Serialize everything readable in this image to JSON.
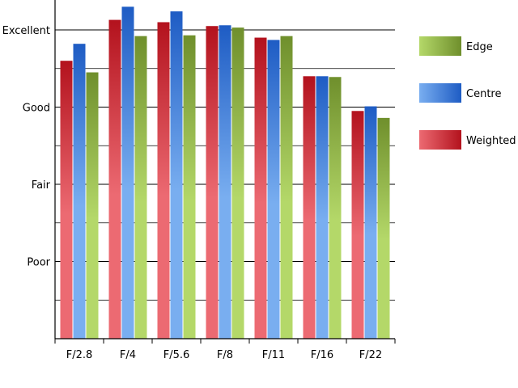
{
  "chart_data": {
    "type": "bar",
    "categories": [
      "F/2.8",
      "F/4",
      "F/5.6",
      "F/8",
      "F/11",
      "F/16",
      "F/22"
    ],
    "series": [
      {
        "name": "Weighted",
        "values": [
          3.6,
          4.13,
          4.1,
          4.05,
          3.9,
          3.4,
          2.95
        ],
        "color_light": "#ec6a72",
        "color_dark": "#b3121d"
      },
      {
        "name": "Centre",
        "values": [
          3.82,
          4.3,
          4.24,
          4.06,
          3.87,
          3.4,
          3.01
        ],
        "color_light": "#79aef0",
        "color_dark": "#1e5cc4"
      },
      {
        "name": "Edge",
        "values": [
          3.45,
          3.92,
          3.93,
          4.03,
          3.92,
          3.39,
          2.86
        ],
        "color_light": "#b4d869",
        "color_dark": "#6f8f2c"
      }
    ],
    "yticks": [
      {
        "value": 1,
        "label": "Poor"
      },
      {
        "value": 2,
        "label": "Fair"
      },
      {
        "value": 3,
        "label": "Good"
      },
      {
        "value": 4,
        "label": "Excellent"
      }
    ],
    "ylim": [
      0,
      4.45
    ],
    "grid": true,
    "legend": {
      "position": "right",
      "order": [
        "Edge",
        "Centre",
        "Weighted"
      ]
    }
  }
}
